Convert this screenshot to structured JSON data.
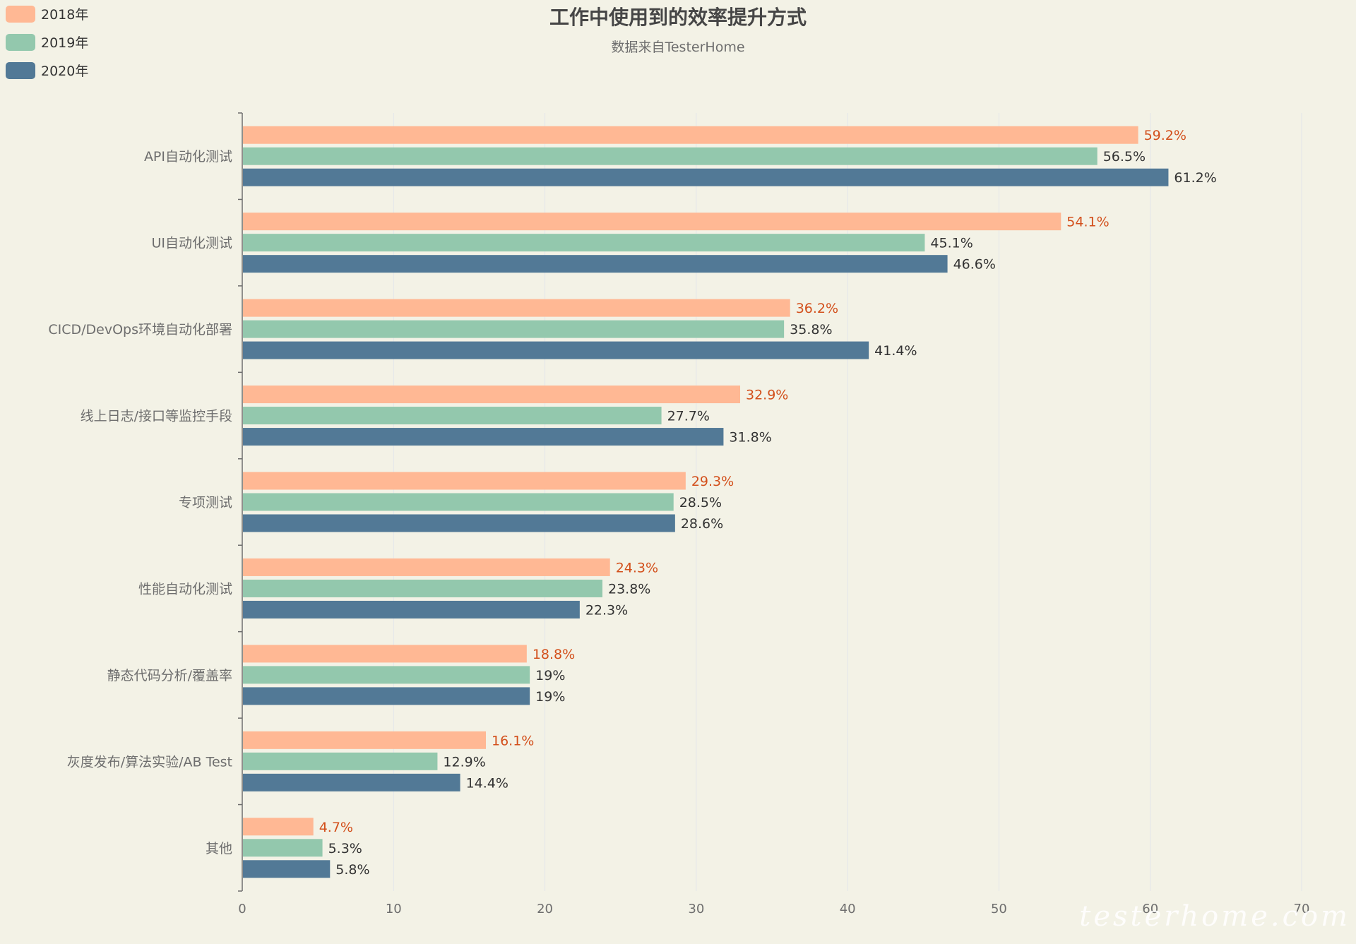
{
  "chart_data": {
    "type": "bar",
    "orientation": "horizontal",
    "title": "工作中使用到的效率提升方式",
    "subtitle": "数据来自TesterHome",
    "categories": [
      "API自动化测试",
      "UI自动化测试",
      "CICD/DevOps环境自动化部署",
      "线上日志/接口等监控手段",
      "专项测试",
      "性能自动化测试",
      "静态代码分析/覆盖率",
      "灰度发布/算法实验/AB Test",
      "其他"
    ],
    "series": [
      {
        "name": "2018年",
        "color": "#ffb894",
        "label_color": "#d3501c",
        "values": [
          59.2,
          54.1,
          36.2,
          32.9,
          29.3,
          24.3,
          18.8,
          16.1,
          4.7
        ]
      },
      {
        "name": "2019年",
        "color": "#93c8ad",
        "label_color": "#333333",
        "values": [
          56.5,
          45.1,
          35.8,
          27.7,
          28.5,
          23.8,
          19,
          12.9,
          5.3
        ]
      },
      {
        "name": "2020年",
        "color": "#527996",
        "label_color": "#333333",
        "values": [
          61.2,
          46.6,
          41.4,
          31.8,
          28.6,
          22.3,
          19,
          14.4,
          5.8
        ]
      }
    ],
    "value_suffix": "%",
    "xlim": [
      0,
      70
    ],
    "xticks": [
      0,
      10,
      20,
      30,
      40,
      50,
      60,
      70
    ],
    "grid": true,
    "legend_position": "top-left"
  },
  "watermark": "testerhome.com"
}
